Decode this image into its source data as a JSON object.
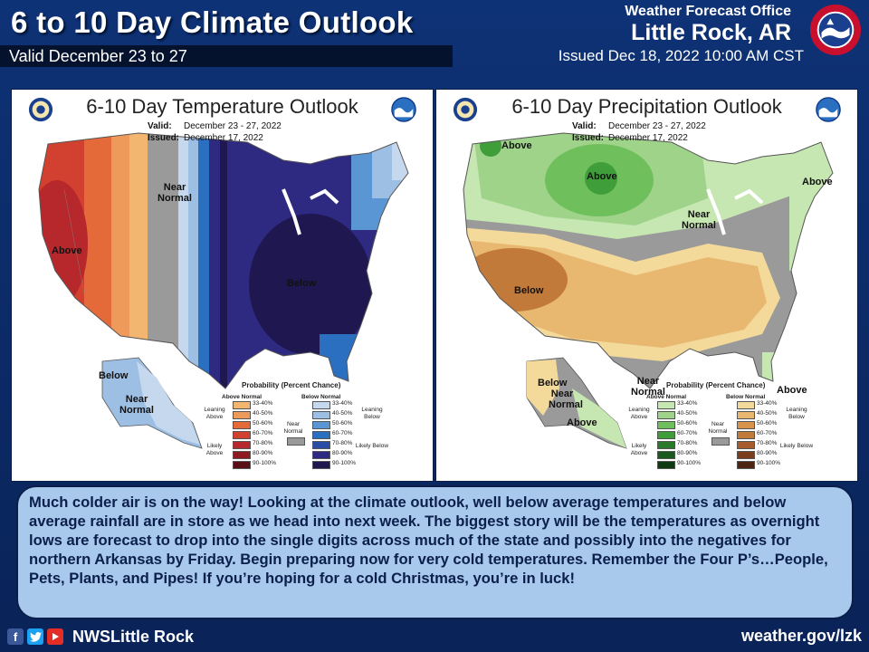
{
  "header": {
    "title": "6 to 10 Day Climate Outlook",
    "valid": "Valid December 23 to 27",
    "office": "Weather Forecast Office",
    "city": "Little Rock, AR",
    "issued": "Issued Dec 18, 2022 10:00 AM CST"
  },
  "temp_map": {
    "title": "6-10 Day Temperature Outlook",
    "valid_label": "Valid:",
    "valid_value": "December 23 - 27, 2022",
    "issued_label": "Issued:",
    "issued_value": "December 17, 2022",
    "labels": {
      "above": "Above",
      "near_normal": "Near Normal",
      "below": "Below",
      "ak_below": "Below",
      "ak_near": "Near Normal"
    }
  },
  "precip_map": {
    "title": "6-10 Day Precipitation Outlook",
    "valid_label": "Valid:",
    "valid_value": "December 23 - 27, 2022",
    "issued_label": "Issued:",
    "issued_value": "December 17, 2022",
    "labels": {
      "above_nw": "Above",
      "above_n": "Above",
      "above_ne": "Above",
      "near_normal": "Near Normal",
      "below": "Below",
      "ak_below": "Below",
      "ak_near": "Near Normal",
      "ak_above": "Above",
      "near_normal_s": "Near Normal",
      "above_fl": "Above"
    }
  },
  "legend": {
    "title": "Probability (Percent Chance)",
    "temp_col_a": "Above Normal",
    "temp_col_b": "Below Normal",
    "precip_col_a": "Above Normal",
    "precip_col_b": "Below Normal",
    "ranges": [
      "33-40%",
      "40-50%",
      "50-60%",
      "60-70%",
      "70-80%",
      "80-90%",
      "90-100%"
    ],
    "near_normal": "Near Normal",
    "temp_leaning_above": "Leaning Above",
    "temp_likely_above": "Likely Above",
    "temp_leaning_below": "Leaning Below",
    "temp_likely_below": "Likely Below",
    "precip_leaning_above": "Leaning Above",
    "precip_likely_above": "Likely Above",
    "precip_leaning_below": "Leaning Below",
    "precip_likely_below": "Likely Below",
    "temp_above_colors": [
      "#f2b670",
      "#ee9a5a",
      "#e56a3a",
      "#d2402f",
      "#b6282c",
      "#8e1a22",
      "#5a0f16"
    ],
    "temp_below_colors": [
      "#c6d8ee",
      "#9ebfe4",
      "#5a96d4",
      "#2a6fc0",
      "#2a4ea6",
      "#2e2a82",
      "#1e1750"
    ],
    "precip_above_colors": [
      "#c6e6b2",
      "#9fd38a",
      "#6fbf5c",
      "#3f9e3a",
      "#287a2a",
      "#1a5a1e",
      "#0e3a12"
    ],
    "precip_below_colors": [
      "#f3d99a",
      "#e8b870",
      "#d7944a",
      "#c27a3a",
      "#a65c2c",
      "#7a3e1e",
      "#4e2510"
    ]
  },
  "message": "Much colder air is on the way! Looking at the climate outlook, well below average temperatures and below average rainfall are in store as we head into next week. The biggest story will be the temperatures as overnight lows are forecast to drop into the single digits across much of the state and possibly into the negatives for northern Arkansas by Friday. Begin preparing now for very cold temperatures. Remember the Four P’s…People, Pets, Plants, and Pipes! If you’re hoping for a cold Christmas, you’re in luck!",
  "footer": {
    "handle": "NWSLittle Rock",
    "website": "weather.gov/lzk",
    "icons": [
      "facebook-icon",
      "twitter-icon",
      "youtube-icon"
    ]
  },
  "colors": {
    "background": "#0b2a66",
    "textbox": "#a8c8ec",
    "near_normal": "#9a9a9a"
  }
}
